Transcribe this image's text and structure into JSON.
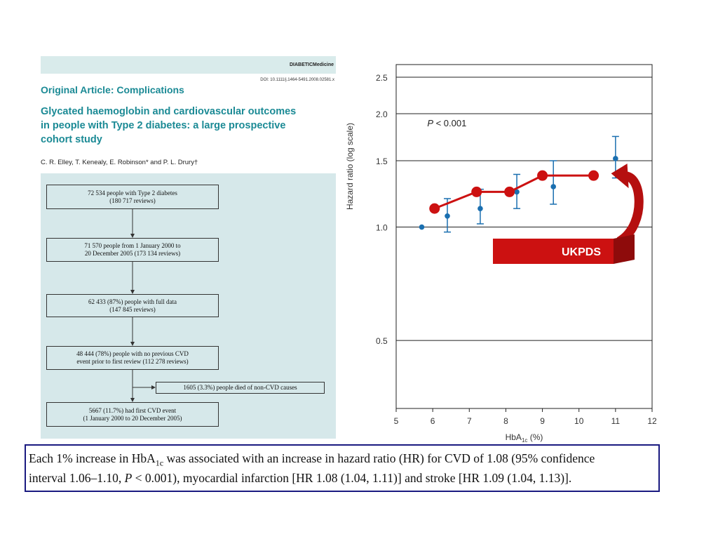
{
  "article": {
    "journal": "DIABETICMedicine",
    "doi": "DOI: 10.1111/j.1464-5491.2008.02581.x",
    "section": "Original Article: Complications",
    "title_lines": [
      "Glycated haemoglobin and cardiovascular outcomes",
      "in people with Type 2 diabetes: a large prospective",
      "cohort study"
    ],
    "authors": "C. R. Elley, T. Kenealy, E. Robinson* and P. L. Drury†",
    "flowchart": {
      "box1": [
        "72 534 people with Type 2 diabetes",
        "(180 717 reviews)"
      ],
      "box2": [
        "71 570 people from 1 January 2000 to",
        "20 December 2005 (173 134 reviews)"
      ],
      "box3": [
        "62 433 (87%) people with full data",
        "(147 845 reviews)"
      ],
      "box4": [
        "48 444 (78%) people with no previous CVD",
        "event prior to first review (112 278 reviews)"
      ],
      "side_box": "1605 (3.3%) people died of non-CVD causes",
      "box5": [
        "5667 (11.7%) had first CVD event",
        "(1 January 2000 to 20 December 2005)"
      ]
    }
  },
  "chart_data": {
    "type": "scatter",
    "ylabel": "Hazard ratio (log scale)",
    "xlabel_main": "HbA",
    "xlabel_sub": "1c",
    "xlabel_suffix": " (%)",
    "y_scale": "log",
    "xlim": [
      5,
      12
    ],
    "ylim": [
      0.33,
      2.7
    ],
    "x_ticks": [
      5,
      6,
      7,
      8,
      9,
      10,
      11,
      12
    ],
    "y_ticks": [
      0.5,
      1.0,
      1.5,
      2.0,
      2.5
    ],
    "y_tick_labels": [
      "0.5",
      "1.0",
      "1.5",
      "2.0",
      "2.5"
    ],
    "grid": "horizontal",
    "annotation": "P < 0.001",
    "series": [
      {
        "points": [
          {
            "x": 5.7,
            "y": 1.0,
            "lo": null,
            "hi": null
          },
          {
            "x": 6.4,
            "y": 1.07,
            "lo": 0.97,
            "hi": 1.19
          },
          {
            "x": 7.3,
            "y": 1.12,
            "lo": 1.02,
            "hi": 1.26
          },
          {
            "x": 8.3,
            "y": 1.24,
            "lo": 1.12,
            "hi": 1.38
          },
          {
            "x": 9.3,
            "y": 1.28,
            "lo": 1.15,
            "hi": 1.5
          },
          {
            "x": 11.0,
            "y": 1.52,
            "lo": 1.35,
            "hi": 1.74
          }
        ],
        "color": "#1a6fb0"
      },
      {
        "name": "UKPDS",
        "points": [
          {
            "x": 6.05,
            "y": 1.12
          },
          {
            "x": 7.2,
            "y": 1.24
          },
          {
            "x": 8.1,
            "y": 1.24
          },
          {
            "x": 9.0,
            "y": 1.37
          },
          {
            "x": 10.4,
            "y": 1.37
          }
        ],
        "color": "#cc1111"
      }
    ],
    "callout_label": "UKPDS"
  },
  "caption": {
    "line1_a": "Each 1% increase in HbA",
    "line1_sub": "1c",
    "line1_b": " was associated with an increase in hazard ratio (HR) for CVD of 1.08 (95% confidence",
    "line2_a": "interval 1.06–1.10, ",
    "line2_p": "P",
    "line2_b": " < 0.001), myocardial infarction [HR 1.08 (1.04, 1.11)] and stroke [HR 1.09 (1.04, 1.13)]."
  }
}
